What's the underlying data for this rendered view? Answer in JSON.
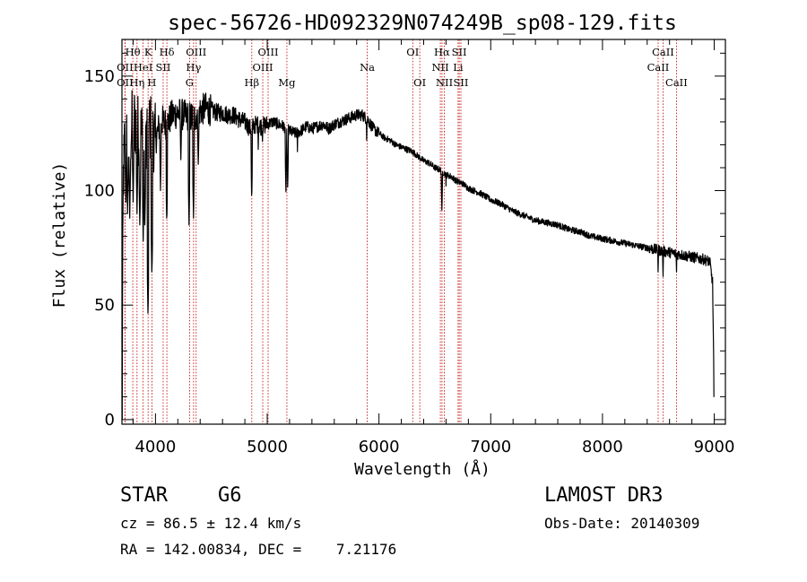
{
  "chart_data": {
    "type": "line",
    "title": "spec-56726-HD092329N074249B_sp08-129.fits",
    "xlabel": "Wavelength (Å)",
    "ylabel": "Flux (relative)",
    "xlim": [
      3700,
      9100
    ],
    "ylim": [
      -2,
      166
    ],
    "x_ticks": [
      4000,
      5000,
      6000,
      7000,
      8000,
      9000
    ],
    "y_ticks": [
      0,
      50,
      100,
      150
    ],
    "grid": false,
    "series": [
      {
        "name": "flux",
        "anchors": [
          [
            3700,
            0
          ],
          [
            3712,
            105
          ],
          [
            3730,
            128
          ],
          [
            3760,
            118
          ],
          [
            3800,
            132
          ],
          [
            3850,
            126
          ],
          [
            3900,
            124
          ],
          [
            3950,
            128
          ],
          [
            4000,
            122
          ],
          [
            4050,
            131
          ],
          [
            4100,
            129
          ],
          [
            4150,
            133
          ],
          [
            4200,
            134
          ],
          [
            4250,
            133
          ],
          [
            4300,
            132
          ],
          [
            4350,
            132
          ],
          [
            4400,
            135
          ],
          [
            4450,
            136
          ],
          [
            4500,
            135
          ],
          [
            4550,
            134
          ],
          [
            4600,
            134
          ],
          [
            4650,
            133
          ],
          [
            4700,
            133
          ],
          [
            4750,
            131
          ],
          [
            4800,
            130
          ],
          [
            4850,
            127
          ],
          [
            4900,
            129
          ],
          [
            4950,
            128
          ],
          [
            5000,
            129
          ],
          [
            5050,
            130
          ],
          [
            5100,
            129
          ],
          [
            5150,
            128
          ],
          [
            5200,
            126
          ],
          [
            5250,
            125
          ],
          [
            5300,
            126
          ],
          [
            5350,
            128
          ],
          [
            5400,
            127
          ],
          [
            5450,
            128
          ],
          [
            5500,
            129
          ],
          [
            5550,
            127
          ],
          [
            5600,
            129
          ],
          [
            5650,
            130
          ],
          [
            5700,
            131
          ],
          [
            5750,
            132
          ],
          [
            5800,
            133
          ],
          [
            5850,
            133
          ],
          [
            5900,
            131
          ],
          [
            5950,
            127
          ],
          [
            6000,
            125
          ],
          [
            6050,
            123
          ],
          [
            6100,
            122
          ],
          [
            6150,
            120
          ],
          [
            6200,
            119
          ],
          [
            6250,
            118
          ],
          [
            6300,
            117
          ],
          [
            6350,
            115
          ],
          [
            6400,
            113
          ],
          [
            6450,
            112
          ],
          [
            6500,
            110
          ],
          [
            6550,
            109
          ],
          [
            6600,
            107
          ],
          [
            6650,
            106
          ],
          [
            6700,
            104
          ],
          [
            6750,
            103
          ],
          [
            6800,
            101
          ],
          [
            6900,
            99
          ],
          [
            7000,
            96
          ],
          [
            7100,
            94
          ],
          [
            7200,
            91
          ],
          [
            7300,
            89
          ],
          [
            7400,
            87
          ],
          [
            7500,
            86
          ],
          [
            7600,
            85
          ],
          [
            7700,
            83
          ],
          [
            7800,
            82
          ],
          [
            7900,
            80
          ],
          [
            8000,
            79
          ],
          [
            8100,
            78
          ],
          [
            8200,
            77
          ],
          [
            8300,
            76
          ],
          [
            8400,
            75
          ],
          [
            8500,
            74
          ],
          [
            8600,
            73
          ],
          [
            8700,
            72
          ],
          [
            8800,
            71
          ],
          [
            8900,
            70
          ],
          [
            8960,
            69
          ],
          [
            8985,
            60
          ],
          [
            9000,
            10
          ]
        ],
        "absorption_dips": [
          [
            3735,
            95
          ],
          [
            3750,
            90
          ],
          [
            3770,
            88
          ],
          [
            3800,
            95
          ],
          [
            3835,
            90
          ],
          [
            3860,
            85
          ],
          [
            3890,
            78
          ],
          [
            3905,
            85
          ],
          [
            3933,
            45
          ],
          [
            3968,
            63
          ],
          [
            4045,
            100
          ],
          [
            4101,
            85
          ],
          [
            4227,
            112
          ],
          [
            4300,
            85
          ],
          [
            4340,
            88
          ],
          [
            4383,
            110
          ],
          [
            4861,
            95
          ],
          [
            4920,
            118
          ],
          [
            4957,
            120
          ],
          [
            5167,
            98
          ],
          [
            5183,
            100
          ],
          [
            5270,
            117
          ],
          [
            5890,
            122
          ],
          [
            6563,
            90
          ],
          [
            6600,
            102
          ],
          [
            8498,
            63
          ],
          [
            8542,
            61
          ],
          [
            8662,
            63
          ]
        ]
      }
    ],
    "spectral_lines": [
      {
        "label": "OII",
        "wave": 3727,
        "row": 2
      },
      {
        "label": "OII",
        "wave": 3727,
        "row": 3
      },
      {
        "label": "Hθ",
        "wave": 3797,
        "row": 1
      },
      {
        "label": "Hη",
        "wave": 3835,
        "row": 3
      },
      {
        "label": "HeI",
        "wave": 3889,
        "row": 2
      },
      {
        "label": "K",
        "wave": 3934,
        "row": 1
      },
      {
        "label": "H",
        "wave": 3968,
        "row": 3
      },
      {
        "label": "SII",
        "wave": 4069,
        "row": 2
      },
      {
        "label": "Hδ",
        "wave": 4102,
        "row": 1
      },
      {
        "label": "G",
        "wave": 4305,
        "row": 3
      },
      {
        "label": "Hγ",
        "wave": 4341,
        "row": 2
      },
      {
        "label": "OIII",
        "wave": 4364,
        "row": 1
      },
      {
        "label": "Hβ",
        "wave": 4862,
        "row": 3
      },
      {
        "label": "OIII",
        "wave": 4960,
        "row": 2
      },
      {
        "label": "OIII",
        "wave": 5008,
        "row": 1
      },
      {
        "label": "Mg",
        "wave": 5176,
        "row": 3
      },
      {
        "label": "Na",
        "wave": 5895,
        "row": 2
      },
      {
        "label": "OI",
        "wave": 6302,
        "row": 1
      },
      {
        "label": "OI",
        "wave": 6365,
        "row": 3
      },
      {
        "label": "NII",
        "wave": 6549,
        "row": 2
      },
      {
        "label": "Hα",
        "wave": 6564,
        "row": 1
      },
      {
        "label": "NII",
        "wave": 6585,
        "row": 3
      },
      {
        "label": "Li",
        "wave": 6708,
        "row": 2
      },
      {
        "label": "SII",
        "wave": 6718,
        "row": 1
      },
      {
        "label": "SII",
        "wave": 6733,
        "row": 3
      },
      {
        "label": "CaII",
        "wave": 8498,
        "row": 2
      },
      {
        "label": "CaII",
        "wave": 8542,
        "row": 1
      },
      {
        "label": "CaII",
        "wave": 8662,
        "row": 3
      }
    ]
  },
  "footer": {
    "class_label": "STAR",
    "subclass": "G6",
    "survey": "LAMOST DR3",
    "cz": "cz = 86.5 ± 12.4 km/s",
    "obs_date": "Obs-Date: 20140309",
    "coords": "RA = 142.00834, DEC =    7.21176"
  }
}
